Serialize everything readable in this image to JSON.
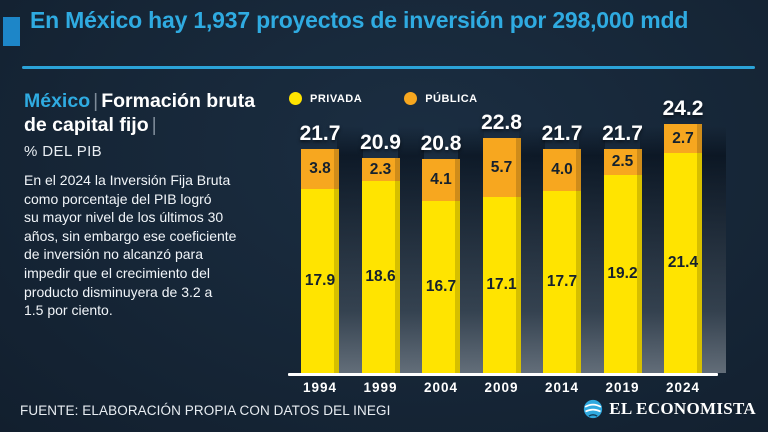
{
  "header": {
    "title": "En México hay 1,937 proyectos de inversión por 298,000 mdd"
  },
  "panel": {
    "heading": {
      "region": "México",
      "sep1": "|",
      "title": "Formación bruta de capital fijo",
      "sep2": "|",
      "unit": "% DEL PIB"
    },
    "body": "En el 2024 la Inversión Fija Bruta\ncomo porcentaje del PIB logró\nsu mayor nivel de los últimos 30\naños, sin embargo ese coeficiente\nde inversión no alcanzó para\nimpedir que el crecimiento del\nproducto disminuyera de 3.2 a\n1.5 por ciento."
  },
  "chart_data": {
    "type": "bar",
    "stacked": true,
    "title": "México | Formación bruta de capital fijo | % DEL PIB",
    "xlabel": "",
    "ylabel": "% del PIB",
    "categories": [
      "1994",
      "1999",
      "2004",
      "2009",
      "2014",
      "2019",
      "2024"
    ],
    "series": [
      {
        "name": "PRIVADA",
        "color": "#ffe400",
        "values": [
          17.9,
          18.6,
          16.7,
          17.1,
          17.7,
          19.2,
          21.4
        ]
      },
      {
        "name": "PÚBLICA",
        "color": "#f7a71f",
        "values": [
          3.8,
          2.3,
          4.1,
          5.7,
          4.0,
          2.5,
          2.7
        ]
      }
    ],
    "totals": [
      21.7,
      20.9,
      20.8,
      22.8,
      21.7,
      21.7,
      24.2
    ],
    "ylim": [
      0,
      24.2
    ],
    "grid": false,
    "legend_position": "top-left"
  },
  "footer": {
    "source": "FUENTE: ELABORACIÓN PROPIA CON DATOS DEL INEGI",
    "brand": "EL ECONOMISTA"
  },
  "colors": {
    "background": "#162637",
    "accent_cyan": "#2fabe1",
    "accent_square_blue": "#1d86c8",
    "bar_private_yellow": "#ffe400",
    "bar_public_orange": "#f7a71f",
    "bar_value_text": "#15212e"
  }
}
